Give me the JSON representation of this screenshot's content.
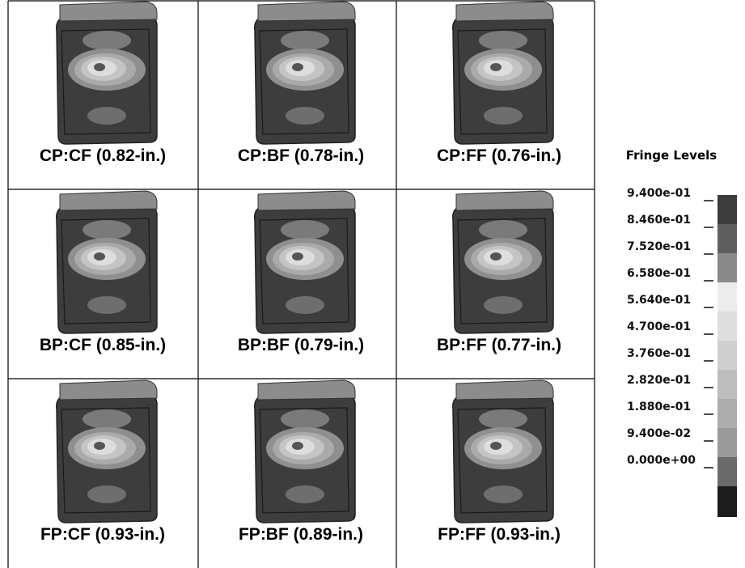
{
  "panels": [
    "CP:CF (0.82-in.)",
    "CP:BF (0.78-in.)",
    "CP:FF (0.76-in.)",
    "BP:CF (0.85-in.)",
    "BP:BF (0.79-in.)",
    "BP:FF (0.77-in.)",
    "FP:CF (0.93-in.)",
    "FP:BF (0.89-in.)",
    "FP:FF (0.93-in.)"
  ],
  "legend": {
    "title": "Fringe Levels",
    "levels": [
      "9.400e-01",
      "8.460e-01",
      "7.520e-01",
      "6.580e-01",
      "5.640e-01",
      "4.700e-01",
      "3.760e-01",
      "2.820e-01",
      "1.880e-01",
      "9.400e-02",
      "0.000e+00"
    ]
  }
}
